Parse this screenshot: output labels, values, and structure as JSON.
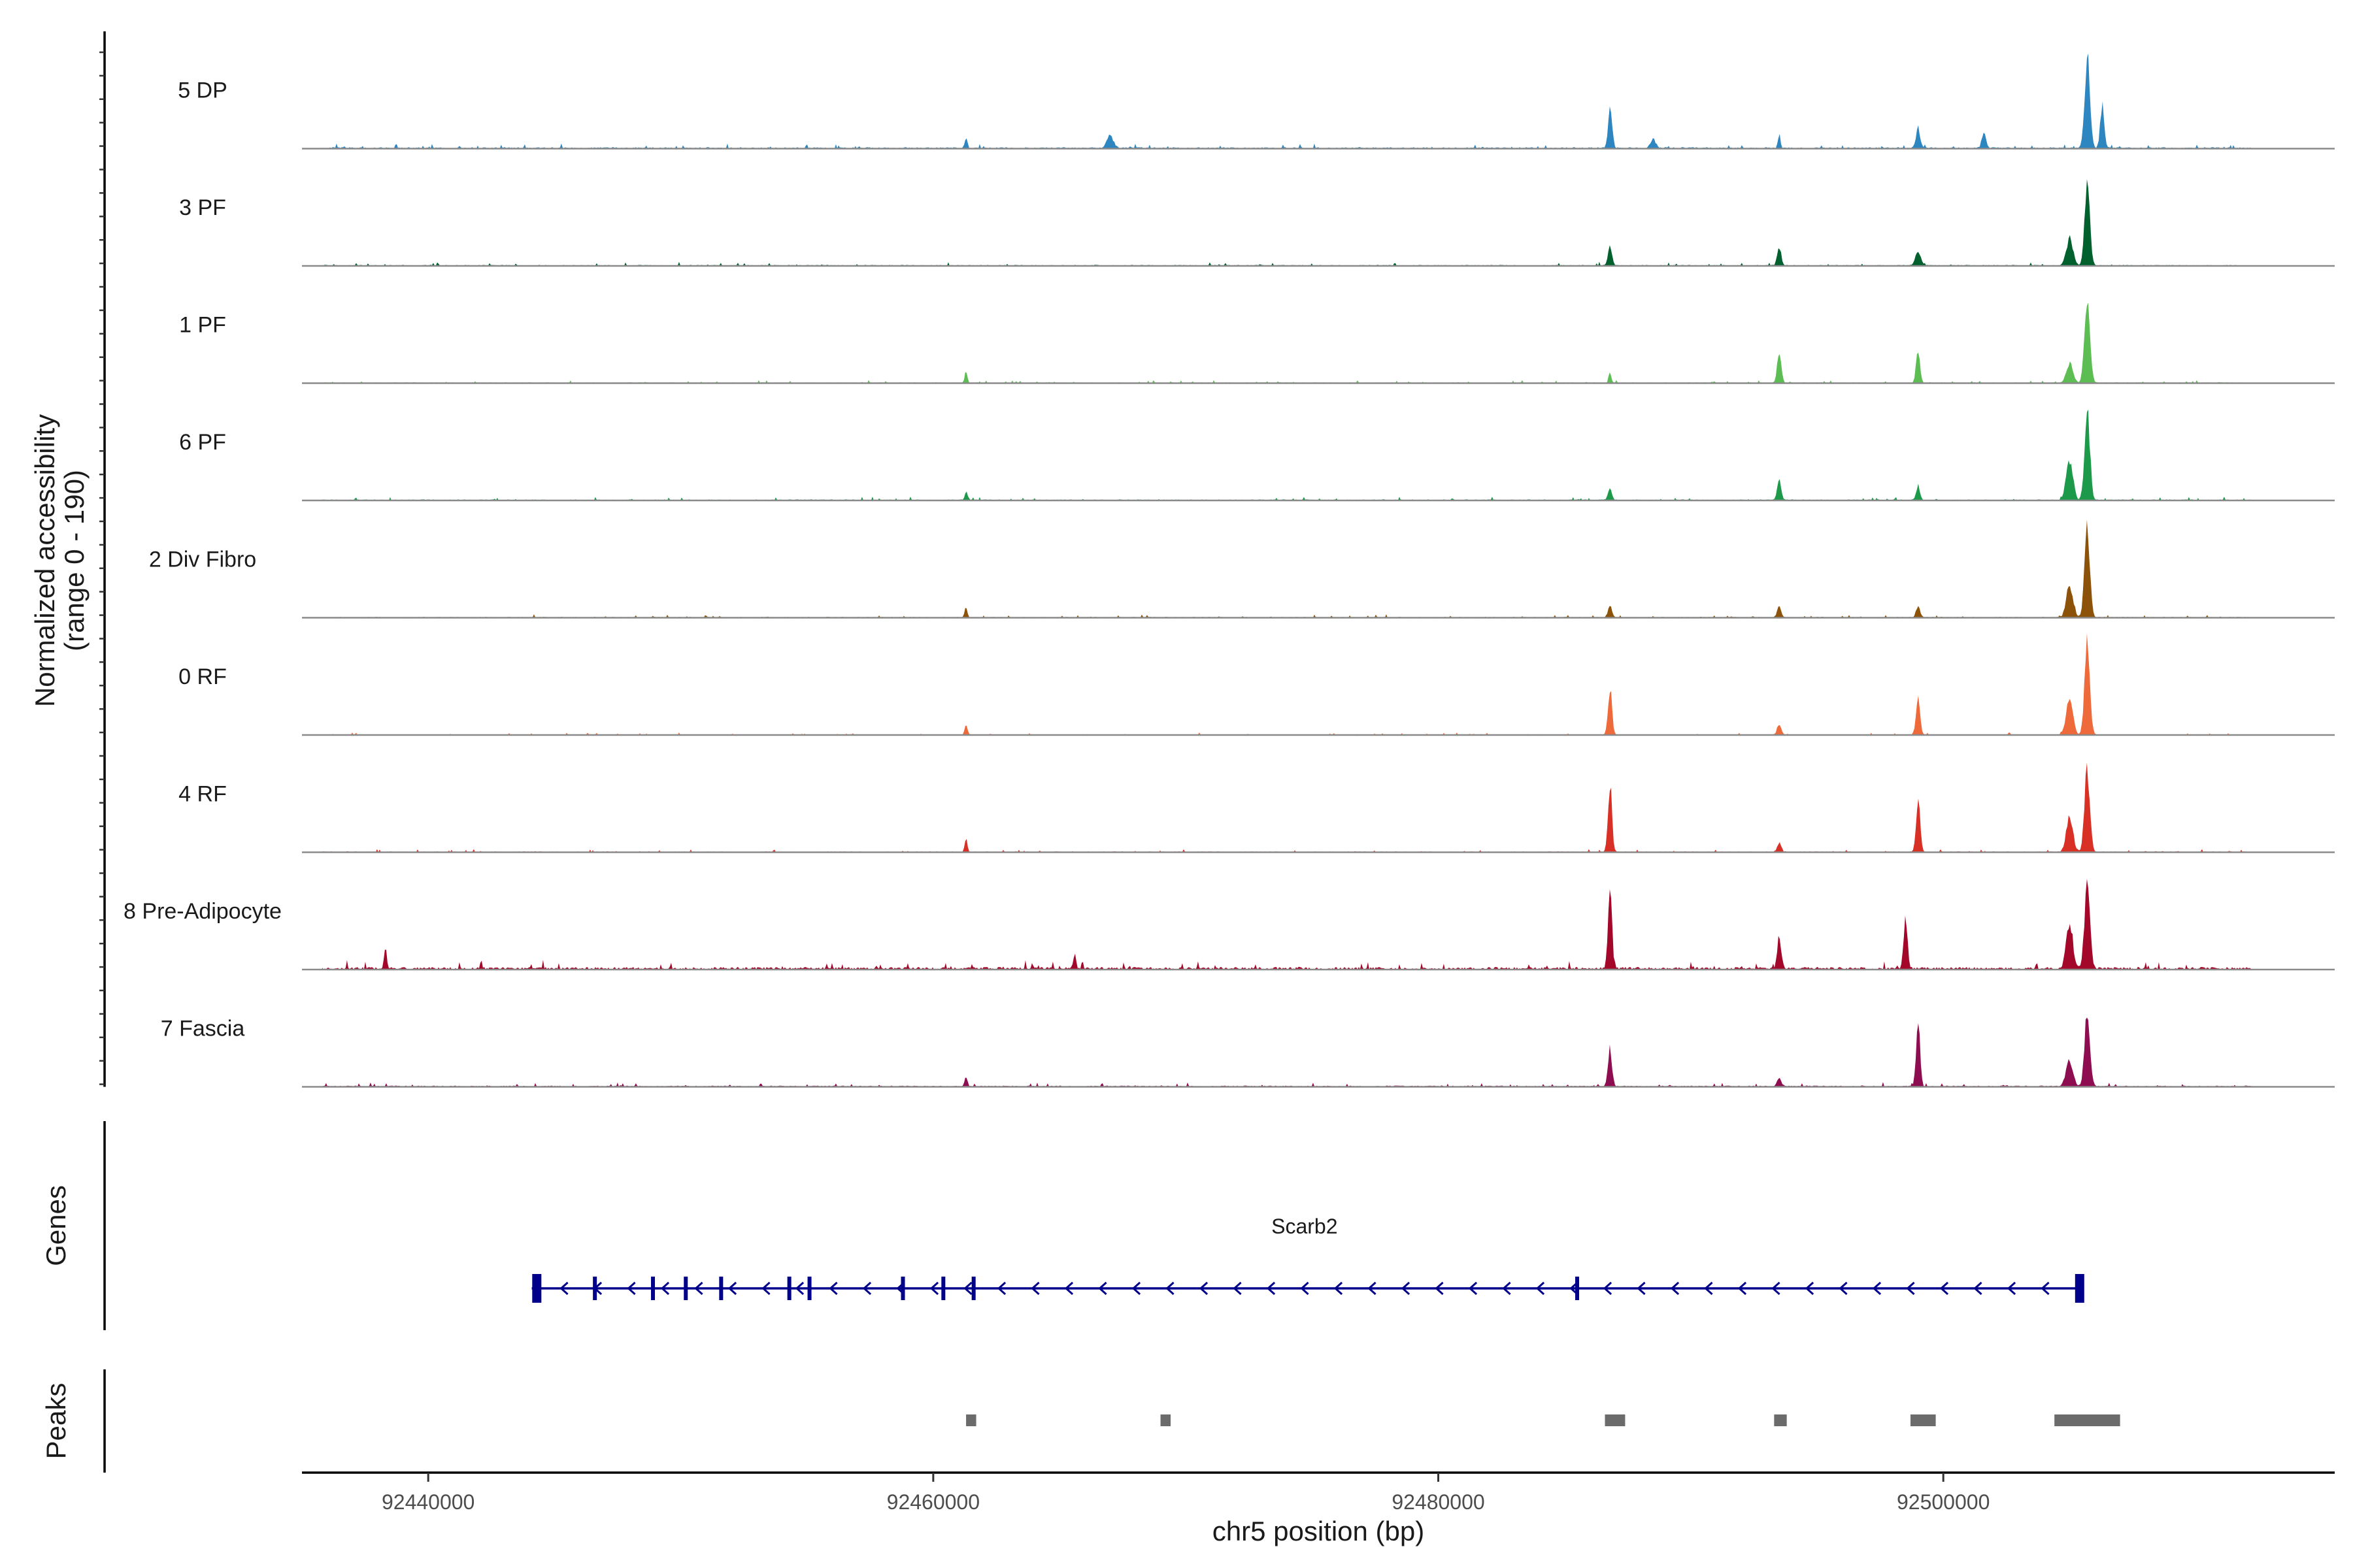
{
  "chart_data": {
    "type": "coverage",
    "title": "",
    "ylabel_line1": "Normalized accessibility",
    "ylabel_line2": "(range 0 - 190)",
    "y_range": [
      0,
      190
    ],
    "xlabel": "chr5 position (bp)",
    "xlim": [
      92435000,
      92515500
    ],
    "x_ticks": [
      92440000,
      92460000,
      92480000,
      92500000
    ],
    "x_tick_labels": [
      "92440000",
      "92460000",
      "92480000",
      "92500000"
    ],
    "data_start": 92435800,
    "data_end": 92512200,
    "tracks": [
      {
        "name": "5 DP",
        "color": "#2e86c1",
        "peaks": [
          [
            92461300,
            0.12,
            2
          ],
          [
            92467000,
            0.14,
            5
          ],
          [
            92486800,
            0.45,
            3
          ],
          [
            92488500,
            0.1,
            4
          ],
          [
            92493500,
            0.14,
            2
          ],
          [
            92499000,
            0.23,
            3
          ],
          [
            92501600,
            0.18,
            3
          ],
          [
            92505700,
            1.0,
            4
          ],
          [
            92506300,
            0.5,
            3
          ]
        ],
        "noise": 0.04
      },
      {
        "name": "3 PF",
        "color": "#00602e",
        "peaks": [
          [
            92486800,
            0.22,
            3
          ],
          [
            92493500,
            0.2,
            3
          ],
          [
            92499000,
            0.16,
            4
          ],
          [
            92505700,
            0.92,
            4
          ],
          [
            92505000,
            0.3,
            5
          ]
        ],
        "noise": 0.03
      },
      {
        "name": "1 PF",
        "color": "#5cbd52",
        "peaks": [
          [
            92461300,
            0.12,
            2
          ],
          [
            92486800,
            0.12,
            2
          ],
          [
            92493500,
            0.35,
            3
          ],
          [
            92499000,
            0.33,
            3
          ],
          [
            92505700,
            1.0,
            4
          ],
          [
            92505000,
            0.22,
            5
          ]
        ],
        "noise": 0.025
      },
      {
        "name": "6 PF",
        "color": "#1c9a4a",
        "peaks": [
          [
            92461300,
            0.1,
            2
          ],
          [
            92486800,
            0.12,
            3
          ],
          [
            92493500,
            0.22,
            3
          ],
          [
            92499000,
            0.15,
            3
          ],
          [
            92505700,
            1.0,
            4
          ],
          [
            92505000,
            0.45,
            5
          ]
        ],
        "noise": 0.03
      },
      {
        "name": "2 Div Fibro",
        "color": "#8c5209",
        "peaks": [
          [
            92461300,
            0.1,
            2
          ],
          [
            92486800,
            0.14,
            3
          ],
          [
            92493500,
            0.12,
            3
          ],
          [
            92499000,
            0.12,
            3
          ],
          [
            92505700,
            1.0,
            4
          ],
          [
            92505000,
            0.35,
            5
          ]
        ],
        "noise": 0.025
      },
      {
        "name": "0 RF",
        "color": "#ef6a3a",
        "peaks": [
          [
            92461300,
            0.13,
            2
          ],
          [
            92486800,
            0.5,
            3
          ],
          [
            92493500,
            0.12,
            3
          ],
          [
            92499000,
            0.38,
            3
          ],
          [
            92505700,
            1.0,
            4
          ],
          [
            92505000,
            0.4,
            5
          ]
        ],
        "noise": 0.02
      },
      {
        "name": "4 RF",
        "color": "#d93026",
        "peaks": [
          [
            92461300,
            0.14,
            2
          ],
          [
            92486800,
            0.72,
            3
          ],
          [
            92493500,
            0.1,
            3
          ],
          [
            92499000,
            0.58,
            3
          ],
          [
            92505700,
            0.92,
            4
          ],
          [
            92505000,
            0.4,
            5
          ]
        ],
        "noise": 0.025
      },
      {
        "name": "8 Pre-Adipocyte",
        "color": "#a3072a",
        "peaks": [
          [
            92438300,
            0.23,
            2
          ],
          [
            92486800,
            0.88,
            3
          ],
          [
            92493500,
            0.35,
            3
          ],
          [
            92498500,
            0.55,
            3
          ],
          [
            92505700,
            1.0,
            4
          ],
          [
            92505000,
            0.5,
            5
          ],
          [
            92465600,
            0.15,
            2
          ]
        ],
        "noise": 0.07
      },
      {
        "name": "7 Fascia",
        "color": "#8e0d50",
        "peaks": [
          [
            92461300,
            0.1,
            2
          ],
          [
            92486800,
            0.42,
            3
          ],
          [
            92493500,
            0.1,
            3
          ],
          [
            92499000,
            0.7,
            3
          ],
          [
            92505700,
            0.8,
            4
          ],
          [
            92505000,
            0.3,
            5
          ]
        ],
        "noise": 0.035
      }
    ],
    "genes_label": "Genes",
    "gene": {
      "name": "Scarb2",
      "start": 92444100,
      "end": 92505500,
      "strand": "-",
      "color": "#00008b",
      "exons": [
        92444300,
        92446600,
        92448900,
        92450200,
        92451600,
        92454300,
        92455100,
        92458800,
        92460400,
        92461600,
        92485500,
        92505400
      ]
    },
    "peaks_label": "Peaks",
    "peak_regions": [
      [
        92461300,
        92461700
      ],
      [
        92469000,
        92469400
      ],
      [
        92486600,
        92487400
      ],
      [
        92493300,
        92493800
      ],
      [
        92498700,
        92499700
      ],
      [
        92504400,
        92507000
      ]
    ],
    "peak_color": "#6b6b6b"
  }
}
